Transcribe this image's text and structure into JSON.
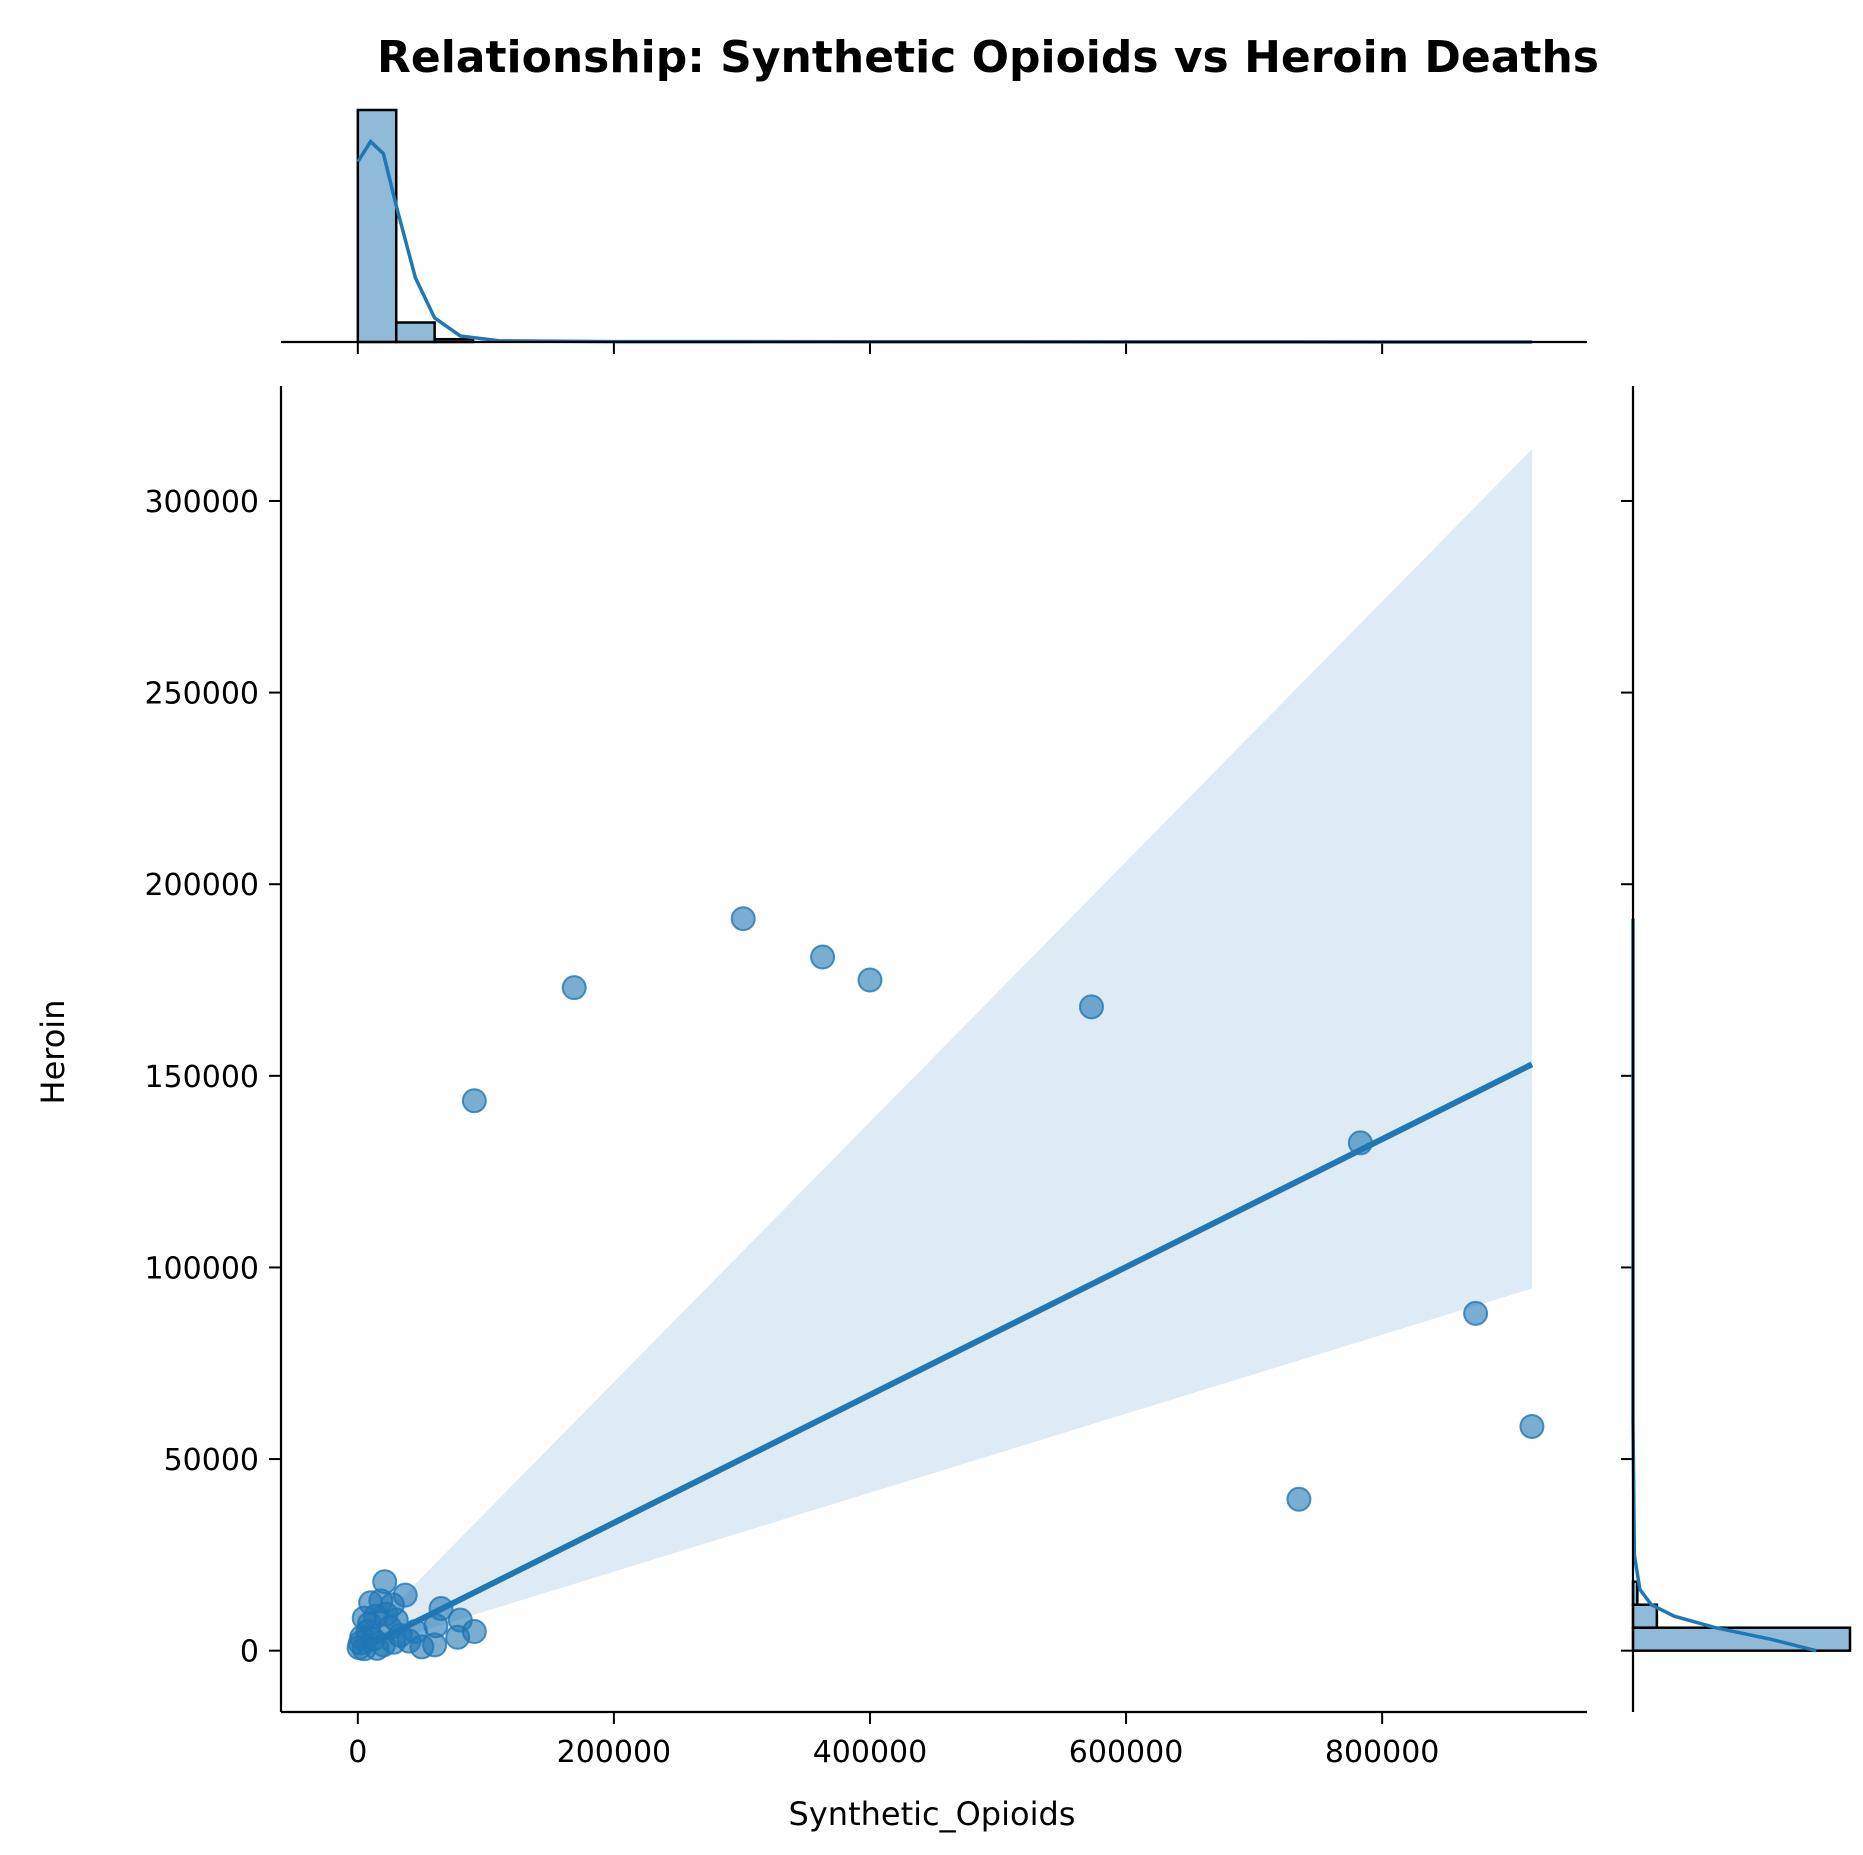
{
  "chart_data": {
    "type": "scatter",
    "title": "Relationship: Synthetic Opioids vs Heroin Deaths",
    "xlabel": "Synthetic_Opioids",
    "ylabel": "Heroin",
    "xlim": [
      -60000,
      960000
    ],
    "ylim": [
      -16000,
      330000
    ],
    "xticks": [
      0,
      200000,
      400000,
      600000,
      800000
    ],
    "xtick_labels": [
      "0",
      "200000",
      "400000",
      "600000",
      "800000"
    ],
    "yticks": [
      0,
      50000,
      100000,
      150000,
      200000,
      250000,
      300000
    ],
    "ytick_labels": [
      "0",
      "50000",
      "100000",
      "150000",
      "200000",
      "250000",
      "300000"
    ],
    "colors": {
      "points": "#1f77b4",
      "band": "#1f77b4",
      "line": "#1f77b4"
    },
    "points": [
      {
        "x": 301000,
        "y": 191000
      },
      {
        "x": 363000,
        "y": 181000
      },
      {
        "x": 400000,
        "y": 175000
      },
      {
        "x": 169000,
        "y": 173000
      },
      {
        "x": 573000,
        "y": 168000
      },
      {
        "x": 91000,
        "y": 143500
      },
      {
        "x": 783000,
        "y": 132500
      },
      {
        "x": 873000,
        "y": 88000
      },
      {
        "x": 917000,
        "y": 58500
      },
      {
        "x": 735000,
        "y": 39500
      },
      {
        "x": 21000,
        "y": 18000
      },
      {
        "x": 37000,
        "y": 14500
      },
      {
        "x": 10000,
        "y": 12500
      },
      {
        "x": 18000,
        "y": 13000
      },
      {
        "x": 27000,
        "y": 12000
      },
      {
        "x": 65000,
        "y": 11000
      },
      {
        "x": 5000,
        "y": 8500
      },
      {
        "x": 80000,
        "y": 8000
      },
      {
        "x": 14000,
        "y": 9000
      },
      {
        "x": 30000,
        "y": 8000
      },
      {
        "x": 61000,
        "y": 6500
      },
      {
        "x": 91000,
        "y": 5000
      },
      {
        "x": 45000,
        "y": 5000
      },
      {
        "x": 78000,
        "y": 3500
      },
      {
        "x": 60000,
        "y": 1500
      },
      {
        "x": 40000,
        "y": 2500
      },
      {
        "x": 25000,
        "y": 6000
      },
      {
        "x": 8000,
        "y": 5000
      },
      {
        "x": 2000,
        "y": 2000
      },
      {
        "x": 12000,
        "y": 3000
      },
      {
        "x": 20000,
        "y": 1500
      },
      {
        "x": 33000,
        "y": 4000
      },
      {
        "x": 5000,
        "y": 500
      },
      {
        "x": 1000,
        "y": 800
      },
      {
        "x": 15000,
        "y": 600
      },
      {
        "x": 50000,
        "y": 1000
      },
      {
        "x": 22000,
        "y": 9500
      },
      {
        "x": 9000,
        "y": 7000
      },
      {
        "x": 3000,
        "y": 3500
      },
      {
        "x": 28000,
        "y": 2200
      }
    ],
    "regression": {
      "x0": 0,
      "y0": 0,
      "x1": 917000,
      "y1": 153000
    },
    "confidence_band": {
      "x": [
        0,
        917000
      ],
      "upper": [
        9000,
        313500
      ],
      "lower": [
        0,
        94500
      ],
      "pivot": {
        "x": 23000,
        "y": 10000
      }
    },
    "marginal_x_hist": {
      "bin_edges": [
        0,
        30000,
        60000,
        90000
      ],
      "counts": [
        500,
        42,
        6
      ],
      "kde": [
        [
          0,
          0.45
        ],
        [
          10000,
          0.5
        ],
        [
          20000,
          0.47
        ],
        [
          30000,
          0.34
        ],
        [
          45000,
          0.16
        ],
        [
          60000,
          0.06
        ],
        [
          80000,
          0.015
        ],
        [
          110000,
          0.003
        ],
        [
          200000,
          0.001
        ],
        [
          917000,
          0.0
        ]
      ]
    },
    "marginal_y_hist": {
      "bin_edges": [
        0,
        6000,
        12000,
        18000
      ],
      "counts": [
        500,
        55,
        10
      ],
      "kde": [
        [
          0,
          0.4
        ],
        [
          3000,
          0.3
        ],
        [
          6000,
          0.18
        ],
        [
          9000,
          0.09
        ],
        [
          12000,
          0.04
        ],
        [
          16000,
          0.015
        ],
        [
          25000,
          0.003
        ],
        [
          60000,
          0.0
        ],
        [
          191000,
          0.0
        ]
      ]
    }
  }
}
